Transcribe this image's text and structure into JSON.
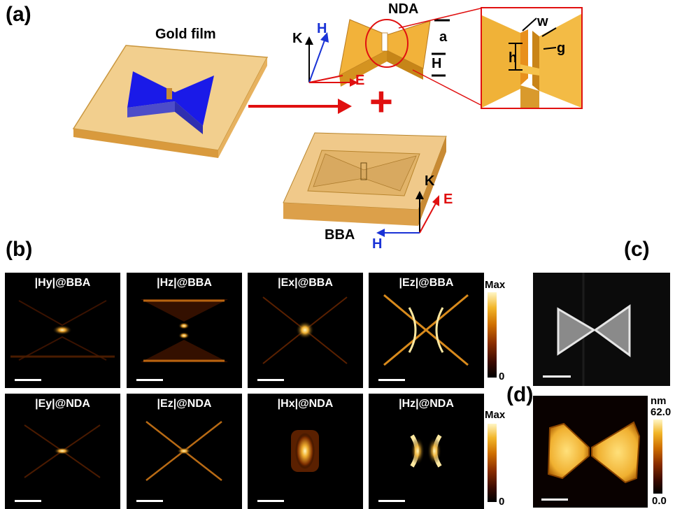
{
  "panels": {
    "a": "(a)",
    "b": "(b)",
    "c": "(c)",
    "d": "(d)"
  },
  "schematic": {
    "gold_film": "Gold film",
    "nda": "NDA",
    "bba": "BBA",
    "dims": {
      "a": "a",
      "H": "H",
      "w": "w",
      "g": "g",
      "h": "h"
    },
    "axes": {
      "k": "K",
      "h": "H",
      "e": "E"
    },
    "plus": "+"
  },
  "field_maps": [
    {
      "title": "|Hy|@BBA",
      "pattern": "hy-bba"
    },
    {
      "title": "|Hz|@BBA",
      "pattern": "hz-bba"
    },
    {
      "title": "|Ex|@BBA",
      "pattern": "ex-bba"
    },
    {
      "title": "|Ez|@BBA",
      "pattern": "ez-bba"
    },
    {
      "title": "|Ey|@NDA",
      "pattern": "ey-nda"
    },
    {
      "title": "|Ez|@NDA",
      "pattern": "ez-nda"
    },
    {
      "title": "|Hx|@NDA",
      "pattern": "hx-nda"
    },
    {
      "title": "|Hz|@NDA",
      "pattern": "hz-nda"
    }
  ],
  "colorbar_field": {
    "max": "Max",
    "min": "0"
  },
  "colorbar_afm": {
    "unit": "nm",
    "max": "62.0",
    "min": "0.0"
  },
  "colors": {
    "gold": "#e8a838",
    "blue": "#1010e0",
    "red": "#e01010"
  }
}
